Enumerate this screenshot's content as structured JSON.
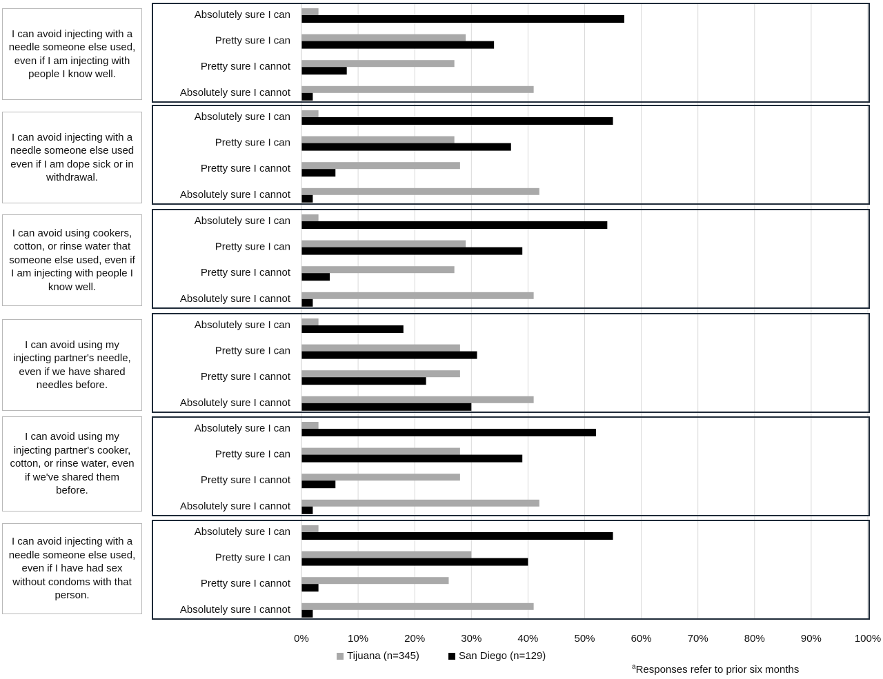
{
  "chart_data": {
    "type": "bar",
    "orientation": "horizontal",
    "xlim": [
      0,
      100
    ],
    "x_ticks": [
      "0%",
      "10%",
      "20%",
      "30%",
      "40%",
      "50%",
      "60%",
      "70%",
      "80%",
      "90%",
      "100%"
    ],
    "grid": true,
    "legend_placement": "bottom",
    "categories": [
      "Absolutely sure I can",
      "Pretty sure I can",
      "Pretty sure I cannot",
      "Absolutely sure I cannot"
    ],
    "series": [
      {
        "name": "Tijuana (n=345)",
        "color": "#a9a9a9"
      },
      {
        "name": "San Diego (n=129)",
        "color": "#000000"
      }
    ],
    "panels": [
      {
        "statement": "I can avoid injecting with a needle someone else used, even if I am injecting with people I know well.",
        "tijuana": [
          3,
          29,
          27,
          41
        ],
        "san_diego": [
          57,
          34,
          8,
          2
        ]
      },
      {
        "statement": "I can avoid injecting with a needle someone else used even if I am dope sick or in withdrawal.",
        "tijuana": [
          3,
          27,
          28,
          42
        ],
        "san_diego": [
          55,
          37,
          6,
          2
        ]
      },
      {
        "statement": "I can avoid using cookers, cotton, or rinse water that someone else used, even if I am injecting with people I know well.",
        "tijuana": [
          3,
          29,
          27,
          41
        ],
        "san_diego": [
          54,
          39,
          5,
          2
        ]
      },
      {
        "statement": "I can avoid using my injecting partner's needle, even if we have shared needles before.",
        "tijuana": [
          3,
          28,
          28,
          41
        ],
        "san_diego": [
          18,
          31,
          22,
          30
        ]
      },
      {
        "statement": "I can avoid using my injecting partner's cooker, cotton, or rinse water, even if we've shared them before.",
        "tijuana": [
          3,
          28,
          28,
          42
        ],
        "san_diego": [
          52,
          39,
          6,
          2
        ]
      },
      {
        "statement": "I can avoid injecting with a needle someone else used, even if I have had sex without condoms with that person.",
        "tijuana": [
          3,
          30,
          26,
          41
        ],
        "san_diego": [
          55,
          40,
          3,
          2
        ]
      }
    ],
    "footnote_marker": "a",
    "footnote": "Responses refer to prior six months"
  }
}
